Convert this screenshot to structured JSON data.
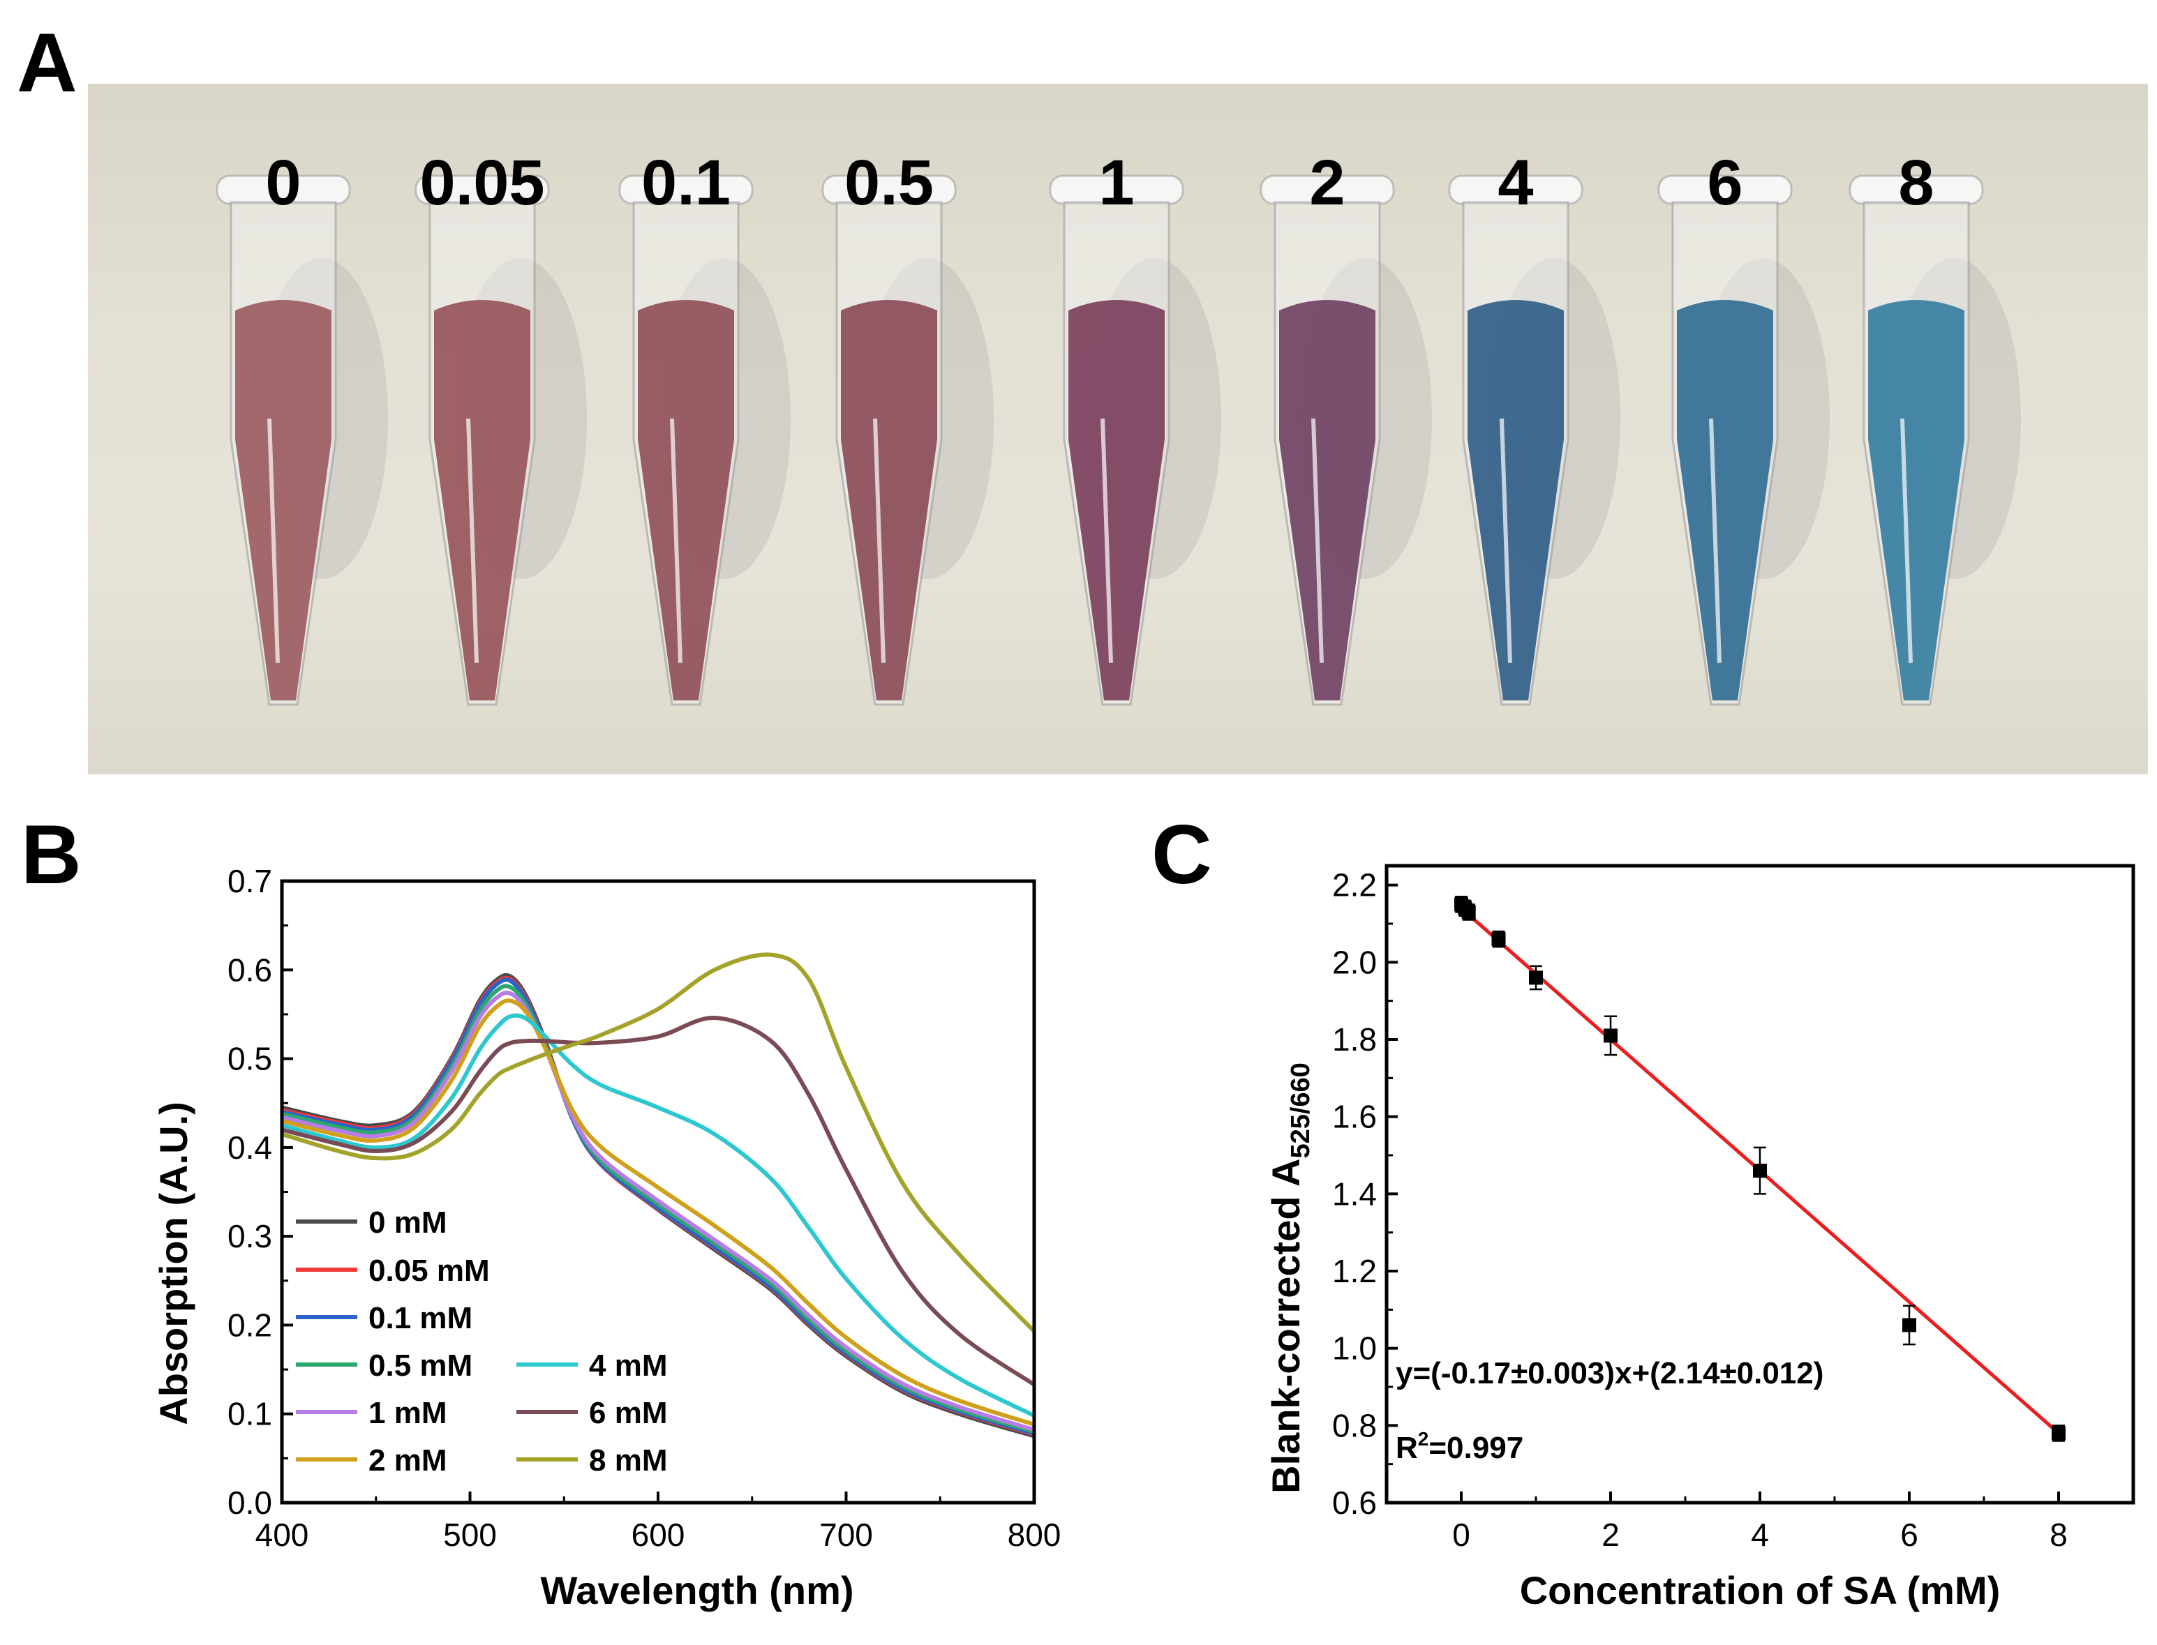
{
  "panels": {
    "a": "A",
    "b": "B",
    "c": "C"
  },
  "photo": {
    "tube_labels": [
      "0",
      "0.05",
      "0.1",
      "0.5",
      "1",
      "2",
      "4",
      "6",
      "8"
    ],
    "tube_colors": [
      "#9a5a5e",
      "#955258",
      "#8f4e56",
      "#8a4a58",
      "#7a3d5a",
      "#6e3f62",
      "#2f5c86",
      "#2f6c92",
      "#347ca0"
    ]
  },
  "chart_data": [
    {
      "type": "line",
      "title": "",
      "xlabel": "Wavelength (nm)",
      "ylabel": "Absorption (A.U.)",
      "xlim": [
        400,
        800
      ],
      "ylim": [
        0.0,
        0.7
      ],
      "xticks": [
        "400",
        "500",
        "600",
        "700",
        "800"
      ],
      "yticks": [
        "0.0",
        "0.1",
        "0.2",
        "0.3",
        "0.4",
        "0.5",
        "0.6",
        "0.7"
      ],
      "x": [
        400,
        430,
        450,
        470,
        490,
        505,
        515,
        522,
        530,
        540,
        555,
        570,
        600,
        630,
        660,
        680,
        700,
        730,
        760,
        800
      ],
      "series": [
        {
          "name": "0 mM",
          "color": "#4a4a4a",
          "values": [
            0.445,
            0.43,
            0.425,
            0.44,
            0.5,
            0.565,
            0.59,
            0.592,
            0.57,
            0.52,
            0.43,
            0.38,
            0.33,
            0.285,
            0.24,
            0.2,
            0.165,
            0.125,
            0.1,
            0.075
          ]
        },
        {
          "name": "0.05 mM",
          "color": "#ee3a3a",
          "values": [
            0.442,
            0.428,
            0.422,
            0.438,
            0.498,
            0.562,
            0.587,
            0.589,
            0.567,
            0.518,
            0.43,
            0.38,
            0.331,
            0.287,
            0.242,
            0.202,
            0.167,
            0.127,
            0.102,
            0.077
          ]
        },
        {
          "name": "0.1 mM",
          "color": "#2a63c9",
          "values": [
            0.44,
            0.426,
            0.42,
            0.436,
            0.496,
            0.56,
            0.585,
            0.587,
            0.565,
            0.517,
            0.43,
            0.381,
            0.332,
            0.288,
            0.243,
            0.203,
            0.168,
            0.128,
            0.103,
            0.078
          ]
        },
        {
          "name": "0.5 mM",
          "color": "#2aa86e",
          "values": [
            0.438,
            0.423,
            0.417,
            0.432,
            0.49,
            0.553,
            0.578,
            0.58,
            0.56,
            0.515,
            0.432,
            0.384,
            0.336,
            0.292,
            0.247,
            0.207,
            0.171,
            0.131,
            0.105,
            0.08
          ]
        },
        {
          "name": "1 mM",
          "color": "#b77ce6",
          "values": [
            0.434,
            0.419,
            0.413,
            0.428,
            0.485,
            0.546,
            0.57,
            0.573,
            0.555,
            0.512,
            0.433,
            0.388,
            0.34,
            0.296,
            0.251,
            0.211,
            0.175,
            0.134,
            0.108,
            0.082
          ]
        },
        {
          "name": "2 mM",
          "color": "#d1a01a",
          "values": [
            0.43,
            0.414,
            0.408,
            0.422,
            0.475,
            0.536,
            0.56,
            0.565,
            0.552,
            0.512,
            0.44,
            0.4,
            0.355,
            0.312,
            0.265,
            0.224,
            0.186,
            0.143,
            0.115,
            0.088
          ]
        },
        {
          "name": "4 mM",
          "color": "#2cc7cf",
          "values": [
            0.425,
            0.408,
            0.4,
            0.41,
            0.455,
            0.51,
            0.537,
            0.548,
            0.545,
            0.525,
            0.492,
            0.47,
            0.445,
            0.415,
            0.365,
            0.31,
            0.252,
            0.185,
            0.14,
            0.098
          ]
        },
        {
          "name": "6 mM",
          "color": "#7a4a55",
          "values": [
            0.42,
            0.404,
            0.396,
            0.405,
            0.44,
            0.485,
            0.51,
            0.518,
            0.52,
            0.52,
            0.518,
            0.518,
            0.525,
            0.546,
            0.52,
            0.46,
            0.375,
            0.26,
            0.19,
            0.133
          ]
        },
        {
          "name": "8 mM",
          "color": "#a3a32a",
          "values": [
            0.415,
            0.396,
            0.388,
            0.393,
            0.42,
            0.46,
            0.482,
            0.49,
            0.497,
            0.505,
            0.516,
            0.527,
            0.556,
            0.6,
            0.617,
            0.59,
            0.49,
            0.36,
            0.28,
            0.193
          ]
        }
      ]
    },
    {
      "type": "scatter",
      "title": "",
      "xlabel": "Concentration of SA (mM)",
      "ylabel_main": "Blank-corrected A",
      "ylabel_sub": "525/660",
      "xlim": [
        -1,
        9
      ],
      "ylim": [
        0.6,
        2.25
      ],
      "xticks": [
        "0",
        "2",
        "4",
        "6",
        "8"
      ],
      "yticks": [
        "0.6",
        "0.8",
        "1.0",
        "1.2",
        "1.4",
        "1.6",
        "1.8",
        "2.0",
        "2.2"
      ],
      "x": [
        0,
        0.05,
        0.1,
        0.5,
        1,
        2,
        4,
        6,
        8
      ],
      "y": [
        2.15,
        2.14,
        2.13,
        2.06,
        1.96,
        1.81,
        1.46,
        1.06,
        0.78
      ],
      "yerr": [
        0.02,
        0.02,
        0.02,
        0.02,
        0.03,
        0.05,
        0.06,
        0.05,
        0.02
      ],
      "fit": {
        "slope": -0.17,
        "intercept": 2.14,
        "color": "#ee1c1c"
      },
      "equation": "y=(-0.17±0.003)x+(2.14±0.012)",
      "r2_prefix": "R",
      "r2_exp": "2",
      "r2_suffix": "=0.997"
    }
  ]
}
